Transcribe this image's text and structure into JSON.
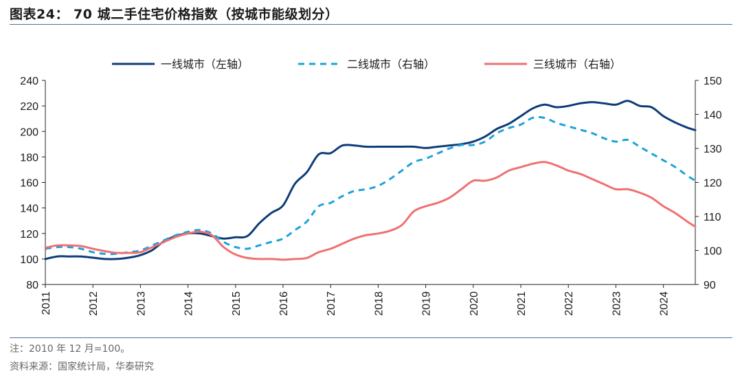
{
  "header": {
    "title": "图表24：  70 城二手住宅价格指数（按城市能级划分）"
  },
  "footer": {
    "note": "注：2010 年 12 月=100。",
    "source": "资料来源：国家统计局，华泰研究"
  },
  "chart_data": {
    "type": "line",
    "title": "图表24：  70 城二手住宅价格指数（按城市能级划分）",
    "xlabel": "",
    "ylabel": "",
    "x_ticks": [
      "2011",
      "2012",
      "2013",
      "2014",
      "2015",
      "2016",
      "2017",
      "2018",
      "2019",
      "2020",
      "2021",
      "2022",
      "2023",
      "2024"
    ],
    "xlim": [
      2011.0,
      2024.67
    ],
    "ylim_left": [
      80,
      240
    ],
    "yticks_left": [
      80,
      100,
      120,
      140,
      160,
      180,
      200,
      220,
      240
    ],
    "ylim_right": [
      90,
      150
    ],
    "yticks_right": [
      90,
      100,
      110,
      120,
      130,
      140,
      150
    ],
    "legend_position": "top-center",
    "grid": false,
    "series": [
      {
        "name": "一线城市（左轴）",
        "axis": "left",
        "color": "#0d3b7a",
        "style": "solid",
        "x": [
          2011.0,
          2011.25,
          2011.5,
          2011.75,
          2012.0,
          2012.25,
          2012.5,
          2012.75,
          2013.0,
          2013.25,
          2013.5,
          2013.75,
          2014.0,
          2014.25,
          2014.5,
          2014.75,
          2015.0,
          2015.25,
          2015.5,
          2015.75,
          2016.0,
          2016.25,
          2016.5,
          2016.75,
          2017.0,
          2017.25,
          2017.5,
          2017.75,
          2018.0,
          2018.25,
          2018.5,
          2018.75,
          2019.0,
          2019.25,
          2019.5,
          2019.75,
          2020.0,
          2020.25,
          2020.5,
          2020.75,
          2021.0,
          2021.25,
          2021.5,
          2021.75,
          2022.0,
          2022.25,
          2022.5,
          2022.75,
          2023.0,
          2023.25,
          2023.5,
          2023.75,
          2024.0,
          2024.25,
          2024.5,
          2024.67
        ],
        "values": [
          100,
          102,
          102,
          102,
          101,
          100,
          100,
          101,
          103,
          107,
          114,
          118,
          120,
          120,
          118,
          116,
          117,
          118,
          128,
          136,
          142,
          159,
          168,
          182,
          183,
          189,
          189,
          188,
          188,
          188,
          188,
          188,
          187,
          188,
          189,
          190,
          192,
          196,
          202,
          206,
          212,
          218,
          221,
          219,
          220,
          222,
          223,
          222,
          221,
          224,
          220,
          219,
          212,
          207,
          203,
          201
        ]
      },
      {
        "name": "二线城市（右轴）",
        "axis": "right",
        "color": "#1aa3d9",
        "style": "dashed",
        "x": [
          2011.0,
          2011.25,
          2011.5,
          2011.75,
          2012.0,
          2012.25,
          2012.5,
          2012.75,
          2013.0,
          2013.25,
          2013.5,
          2013.75,
          2014.0,
          2014.25,
          2014.5,
          2014.75,
          2015.0,
          2015.25,
          2015.5,
          2015.75,
          2016.0,
          2016.25,
          2016.5,
          2016.75,
          2017.0,
          2017.25,
          2017.5,
          2017.75,
          2018.0,
          2018.25,
          2018.5,
          2018.75,
          2019.0,
          2019.25,
          2019.5,
          2019.75,
          2020.0,
          2020.25,
          2020.5,
          2020.75,
          2021.0,
          2021.25,
          2021.5,
          2021.75,
          2022.0,
          2022.25,
          2022.5,
          2022.75,
          2023.0,
          2023.25,
          2023.5,
          2023.75,
          2024.0,
          2024.25,
          2024.5,
          2024.67
        ],
        "values": [
          100.5,
          101.0,
          101.0,
          100.5,
          99.5,
          99.0,
          99.0,
          99.5,
          100.0,
          101.5,
          103.0,
          104.5,
          105.5,
          106.0,
          105.0,
          102.5,
          101.0,
          100.5,
          101.5,
          102.5,
          103.5,
          106.0,
          108.5,
          113.0,
          114.0,
          116.0,
          117.5,
          118.0,
          119.0,
          121.0,
          123.5,
          126.0,
          127.0,
          128.5,
          130.0,
          131.0,
          131.0,
          132.0,
          134.5,
          136.0,
          137.0,
          139.0,
          139.0,
          137.5,
          136.5,
          135.5,
          134.5,
          133.0,
          132.0,
          132.5,
          130.5,
          128.5,
          126.5,
          124.5,
          122.0,
          120.5
        ]
      },
      {
        "name": "三线城市（右轴）",
        "axis": "right",
        "color": "#f07070",
        "style": "solid",
        "x": [
          2011.0,
          2011.25,
          2011.5,
          2011.75,
          2012.0,
          2012.25,
          2012.5,
          2012.75,
          2013.0,
          2013.25,
          2013.5,
          2013.75,
          2014.0,
          2014.25,
          2014.5,
          2014.75,
          2015.0,
          2015.25,
          2015.5,
          2015.75,
          2016.0,
          2016.25,
          2016.5,
          2016.75,
          2017.0,
          2017.25,
          2017.5,
          2017.75,
          2018.0,
          2018.25,
          2018.5,
          2018.75,
          2019.0,
          2019.25,
          2019.5,
          2019.75,
          2020.0,
          2020.25,
          2020.5,
          2020.75,
          2021.0,
          2021.25,
          2021.5,
          2021.75,
          2022.0,
          2022.25,
          2022.5,
          2022.75,
          2023.0,
          2023.25,
          2023.5,
          2023.75,
          2024.0,
          2024.25,
          2024.5,
          2024.67
        ],
        "values": [
          100.8,
          101.5,
          101.5,
          101.3,
          100.5,
          99.8,
          99.3,
          99.3,
          99.5,
          101.0,
          102.5,
          104.0,
          105.0,
          105.5,
          104.5,
          101.0,
          98.8,
          97.8,
          97.5,
          97.5,
          97.3,
          97.5,
          97.8,
          99.5,
          100.5,
          102.0,
          103.5,
          104.5,
          105.0,
          105.8,
          107.5,
          111.5,
          113.0,
          114.0,
          115.5,
          118.0,
          120.5,
          120.5,
          121.5,
          123.5,
          124.5,
          125.5,
          126.0,
          125.0,
          123.5,
          122.5,
          121.0,
          119.5,
          118.0,
          118.0,
          117.0,
          115.5,
          113.0,
          111.0,
          108.5,
          107.0
        ]
      }
    ]
  }
}
